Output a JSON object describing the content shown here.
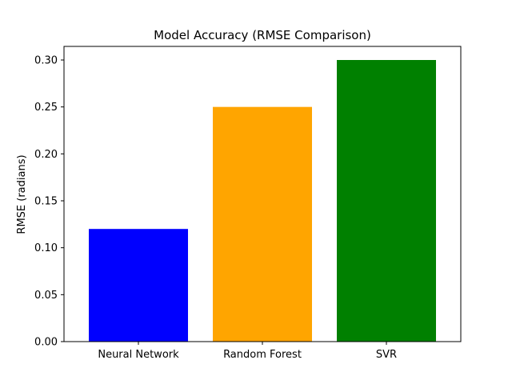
{
  "chart_data": {
    "type": "bar",
    "title": "Model Accuracy (RMSE Comparison)",
    "xlabel": "",
    "ylabel": "RMSE (radians)",
    "categories": [
      "Neural Network",
      "Random Forest",
      "SVR"
    ],
    "values": [
      0.12,
      0.25,
      0.3
    ],
    "colors": [
      "#0000ff",
      "#ffa500",
      "#008000"
    ],
    "ylim": [
      0,
      0.3
    ],
    "yticks": [
      "0.00",
      "0.05",
      "0.10",
      "0.15",
      "0.20",
      "0.25",
      "0.30"
    ],
    "grid": false,
    "legend": "none"
  }
}
